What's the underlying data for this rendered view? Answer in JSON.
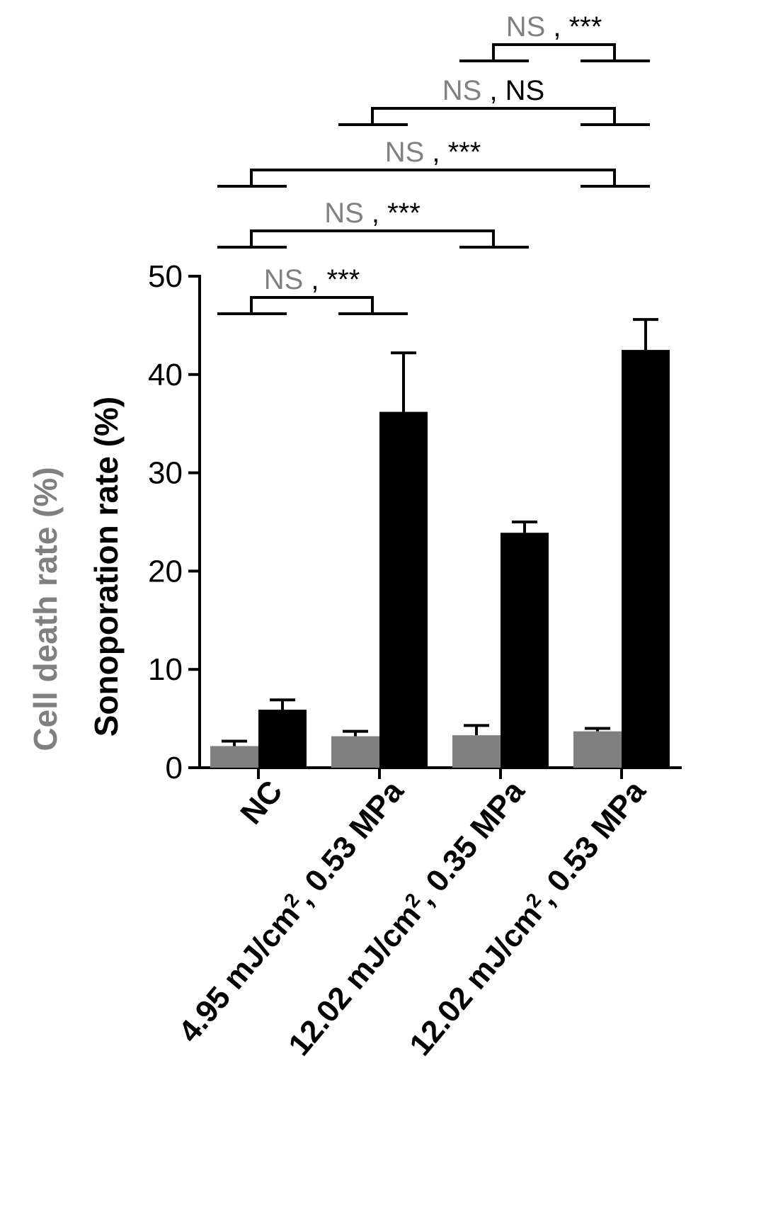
{
  "chart_data": {
    "type": "bar",
    "categories": [
      {
        "id": "nc",
        "line1": "NC"
      },
      {
        "id": "c2",
        "line1": "4.95 mJ/cm",
        "sup": "2",
        "line2": ", 0.53 MPa"
      },
      {
        "id": "c3",
        "line1": "12.02 mJ/cm",
        "sup": "2",
        "line2": ", 0.35 MPa"
      },
      {
        "id": "c4",
        "line1": "12.02 mJ/cm",
        "sup": "2",
        "line2": ", 0.53 MPa"
      }
    ],
    "series": [
      {
        "key": "cell_death",
        "values": [
          2.2,
          3.2,
          3.3,
          3.7
        ],
        "errors": [
          0.5,
          0.5,
          1.0,
          0.3
        ],
        "color": "#808080"
      },
      {
        "key": "sonoporation",
        "values": [
          5.9,
          36.2,
          23.9,
          42.5
        ],
        "errors": [
          1.0,
          6.0,
          1.1,
          3.1
        ],
        "color": "#000000"
      }
    ],
    "ylabel_cell_death": "Cell death rate (%)",
    "ylabel_sonoporation": "Sonoporation rate (%)",
    "ylim": [
      0,
      50
    ],
    "yticks": [
      "0",
      "10",
      "20",
      "30",
      "40",
      "50"
    ],
    "significance": [
      {
        "from": 0,
        "to": 1,
        "left": "NS",
        "sep": ",",
        "right": "***"
      },
      {
        "from": 0,
        "to": 2,
        "left": "NS",
        "sep": ",",
        "right": "***"
      },
      {
        "from": 0,
        "to": 3,
        "left": "NS",
        "sep": ",",
        "right": "***"
      },
      {
        "from": 1,
        "to": 3,
        "left": "NS",
        "sep": ",",
        "right": "NS"
      },
      {
        "from": 2,
        "to": 3,
        "left": "NS",
        "sep": ",",
        "right": "***"
      }
    ],
    "colors": {
      "gray": "#808080",
      "black": "#000000"
    }
  }
}
